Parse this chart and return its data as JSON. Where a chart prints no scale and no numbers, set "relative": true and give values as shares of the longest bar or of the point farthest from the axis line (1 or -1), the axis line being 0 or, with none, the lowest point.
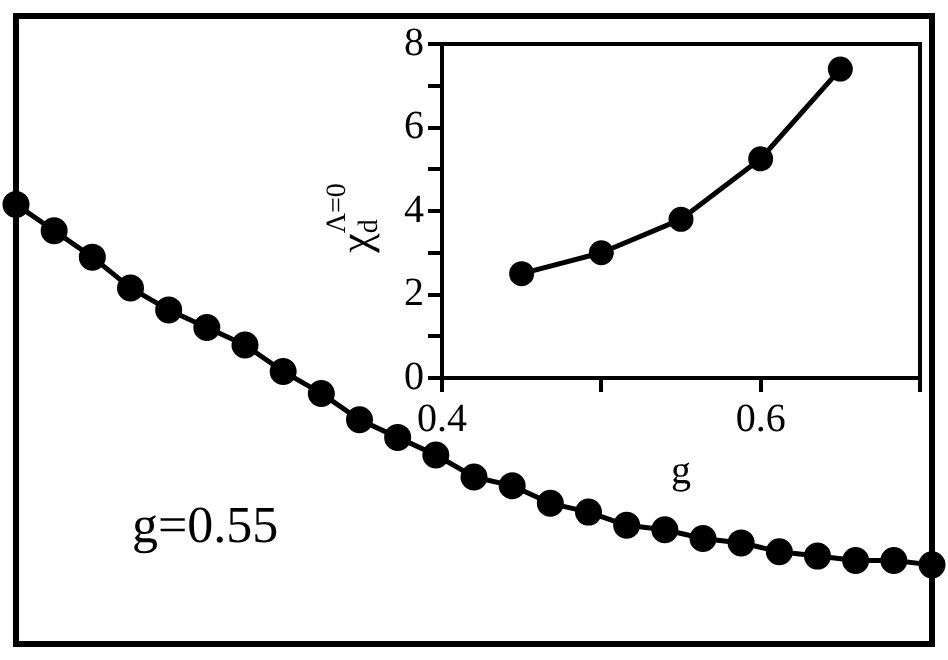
{
  "chart_data": [
    {
      "type": "line",
      "relative": true,
      "marker": "circle",
      "categories": [
        null,
        null,
        null,
        null,
        null,
        null,
        null,
        null,
        null,
        null,
        null,
        null,
        null,
        null,
        null,
        null,
        null,
        null,
        null,
        null,
        null,
        null,
        null,
        null,
        null
      ],
      "series": [
        {
          "color": "#000000",
          "values": [
            1,
            0.94,
            0.88,
            0.81,
            0.76,
            0.72,
            0.68,
            0.62,
            0.57,
            0.51,
            0.47,
            0.43,
            0.38,
            0.36,
            0.32,
            0.3,
            0.27,
            0.26,
            0.24,
            0.23,
            0.21,
            0.2,
            0.19,
            0.19,
            0.18
          ]
        }
      ],
      "annotations": [
        "g=0.55"
      ]
    },
    {
      "type": "line",
      "marker": "circle",
      "xlabel": "g",
      "ylabel": "χ$_{d}$$^{Λ=0}$",
      "x": [
        0.45,
        0.5,
        0.55,
        0.6,
        0.65
      ],
      "series": [
        {
          "color": "#000000",
          "values": [
            2.5,
            3.0,
            3.8,
            5.25,
            7.4
          ]
        }
      ],
      "xlim": [
        0.4,
        0.7
      ],
      "xticks": [
        0.4,
        {
          "value": 0.5,
          "label": null
        },
        0.6,
        {
          "value": 0.7,
          "label": null
        }
      ],
      "ylim": [
        0,
        8
      ],
      "yticks": [
        0,
        {
          "value": 1,
          "label": null
        },
        2,
        {
          "value": 3,
          "label": null
        },
        4,
        {
          "value": 5,
          "label": null
        },
        6,
        {
          "value": 7,
          "label": null
        },
        8
      ]
    }
  ]
}
